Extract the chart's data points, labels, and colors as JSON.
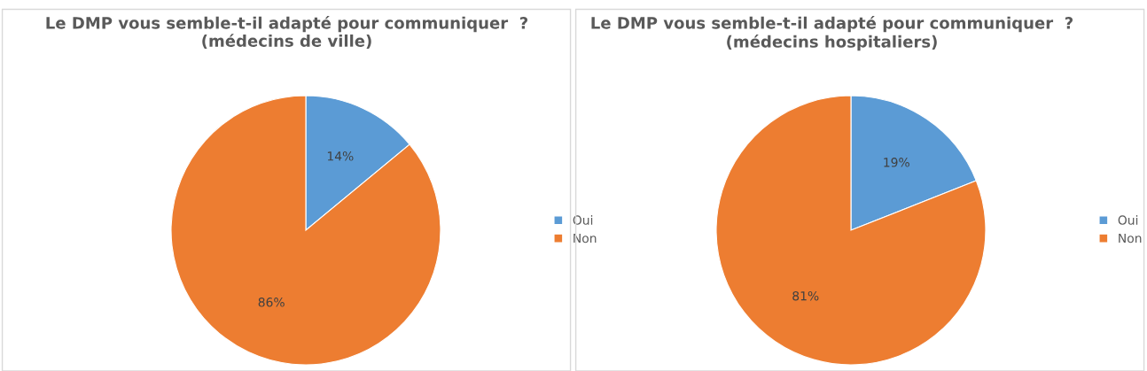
{
  "chart_data": [
    {
      "type": "pie",
      "title": "Le DMP vous semble-t-il adapté pour communiquer  ?\n(médecins de ville)",
      "categories": [
        "Oui",
        "Non"
      ],
      "values": [
        14,
        86
      ],
      "colors": [
        "#5b9bd5",
        "#ed7d31"
      ],
      "value_labels": [
        "14%",
        "86%"
      ],
      "legend": "right"
    },
    {
      "type": "pie",
      "title": "Le DMP vous semble-t-il adapté pour communiquer  ?\n(médecins hospitaliers)",
      "categories": [
        "Oui",
        "Non"
      ],
      "values": [
        19,
        81
      ],
      "colors": [
        "#5b9bd5",
        "#ed7d31"
      ],
      "value_labels": [
        "19%",
        "81%"
      ],
      "legend": "right"
    }
  ]
}
